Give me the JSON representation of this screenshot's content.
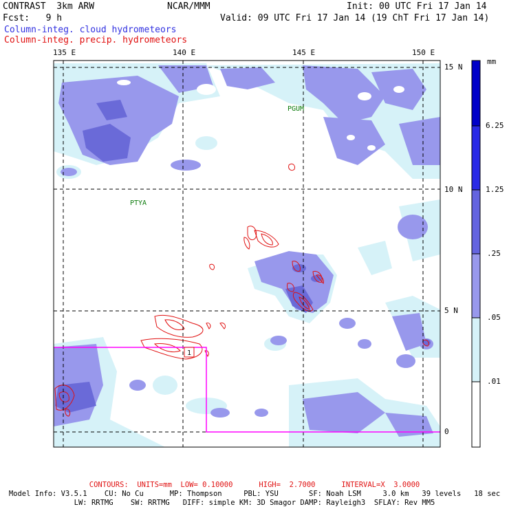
{
  "header": {
    "model": "CONTRAST  3km ARW",
    "org": "NCAR/MMM",
    "init": "Init: 00 UTC Fri 17 Jan 14",
    "fcst": "Fcst:   9 h",
    "valid": "Valid: 09 UTC Fri 17 Jan 14 (19 ChT Fri 17 Jan 14)",
    "cloud_legend": "Column-integ. cloud hydrometeors",
    "precip_legend": "Column-integ. precip. hydrometeors"
  },
  "map": {
    "lon_labels": [
      "135 E",
      "140 E",
      "145 E",
      "150 E"
    ],
    "lat_labels": [
      "15 N",
      "10 N",
      "5 N",
      "0"
    ],
    "place_labels": [
      "PGUM",
      "PTYA"
    ],
    "box_label": "1"
  },
  "colorbar": {
    "unit": "mm",
    "labels": [
      "6.25",
      "1.25",
      ".25",
      ".05",
      ".01"
    ],
    "colors": [
      "#0000c8",
      "#2a2ae6",
      "#6464e0",
      "#9898ec",
      "#d6f2f8",
      "#ffffff"
    ]
  },
  "colors": {
    "cloud_light": "#d6f2f8",
    "cloud_mid": "#9898ec",
    "cloud_dark": "#6a6ad8",
    "precip": "#e01010",
    "domain_box": "#ff00ff"
  },
  "footer": {
    "contours": "CONTOURS:  UNITS=mm  LOW= 0.10000      HIGH=  2.7000      INTERVAL=X  3.0000",
    "model_info": "Model Info: V3.5.1    CU: No Cu      MP: Thompson     PBL: YSU       SF: Noah LSM     3.0 km   39 levels   18 sec",
    "physics": "LW: RRTMG    SW: RRTMG   DIFF: simple KM: 3D Smagor DAMP: Rayleigh3  SFLAY: Rev MM5"
  }
}
